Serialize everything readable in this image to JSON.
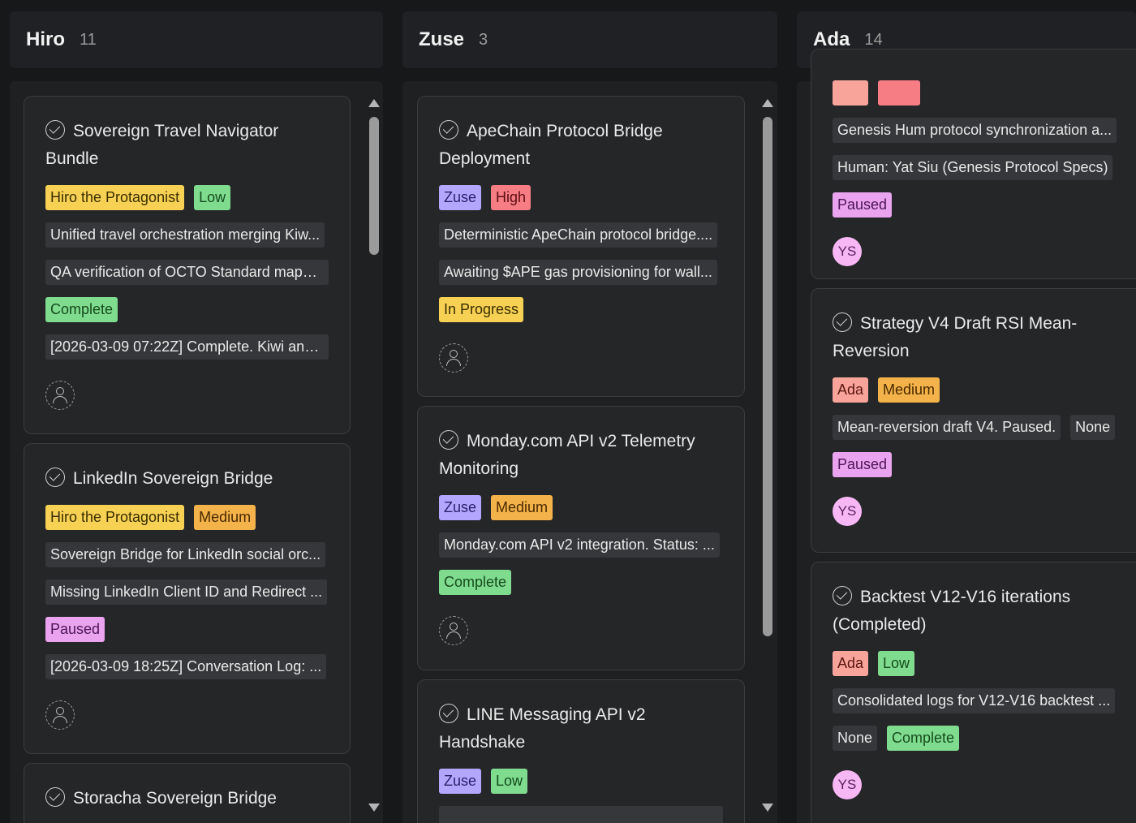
{
  "columns": [
    {
      "name": "Hiro",
      "count": "11",
      "cards": [
        {
          "title": "Sovereign Travel Navigator Bundle",
          "tags": [
            "Hiro the Protagonist",
            "Low"
          ],
          "lines": [
            "Unified travel orchestration merging Kiw...",
            "QA verification of OCTO Standard mappi..."
          ],
          "status": "Complete",
          "log": "[2026-03-09 07:22Z] Complete. Kiwi and..."
        },
        {
          "title": "LinkedIn Sovereign Bridge",
          "tags": [
            "Hiro the Protagonist",
            "Medium"
          ],
          "lines": [
            "Sovereign Bridge for LinkedIn social orc...",
            "Missing LinkedIn Client ID and Redirect ..."
          ],
          "status": "Paused",
          "log": "[2026-03-09 18:25Z] Conversation Log: ..."
        },
        {
          "title": "Storacha Sovereign Bridge"
        }
      ]
    },
    {
      "name": "Zuse",
      "count": "3",
      "cards": [
        {
          "title": "ApeChain Protocol Bridge Deployment",
          "tags": [
            "Zuse",
            "High"
          ],
          "lines": [
            "Deterministic ApeChain protocol bridge....",
            "Awaiting $APE gas provisioning for wall..."
          ],
          "status": "In Progress"
        },
        {
          "title": "Monday.com API v2 Telemetry Monitoring",
          "tags": [
            "Zuse",
            "Medium"
          ],
          "lines": [
            "Monday.com API v2 integration. Status: ..."
          ],
          "status": "Complete"
        },
        {
          "title": "LINE Messaging API v2 Handshake",
          "tags": [
            "Zuse",
            "Low"
          ]
        }
      ]
    },
    {
      "name": "Ada",
      "count": "14",
      "cards": [
        {
          "lines": [
            "Genesis Hum protocol synchronization a...",
            "Human: Yat Siu (Genesis Protocol Specs)"
          ],
          "status": "Paused",
          "avatar": "YS"
        },
        {
          "title": "Strategy V4 Draft RSI Mean-Reversion",
          "tags": [
            "Ada",
            "Medium"
          ],
          "lines": [
            "Mean-reversion draft V4. Paused."
          ],
          "extra": "None",
          "status": "Paused",
          "avatar": "YS"
        },
        {
          "title": "Backtest V12-V16 iterations (Completed)",
          "tags": [
            "Ada",
            "Low"
          ],
          "lines": [
            "Consolidated logs for V12-V16 backtest ..."
          ],
          "extra": "None",
          "status": "Complete",
          "avatar": "YS"
        }
      ]
    }
  ]
}
